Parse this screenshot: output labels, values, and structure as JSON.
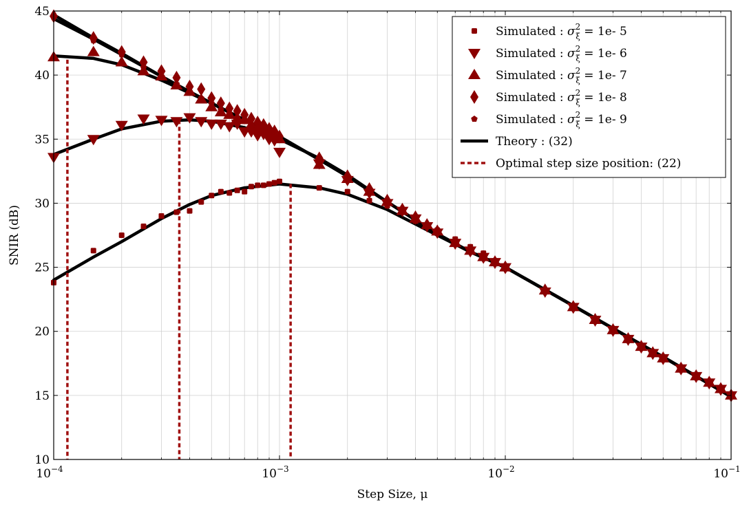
{
  "colors": {
    "marker": "#8b0000",
    "theory": "#000000",
    "optimal": "#a01010",
    "grid": "#d0d0d0"
  },
  "chart_data": {
    "type": "line",
    "xlabel": "Step Size, μ",
    "ylabel": "SNIR (dB)",
    "xscale": "log",
    "xlim": [
      0.0001,
      0.1
    ],
    "ylim": [
      10,
      45
    ],
    "grid": true,
    "legend_position": "top-right",
    "x_ticks": [
      {
        "base": "10",
        "exp": "−4"
      },
      {
        "base": "10",
        "exp": "−3"
      },
      {
        "base": "10",
        "exp": "−2"
      },
      {
        "base": "10",
        "exp": "−1"
      }
    ],
    "y_ticks": [
      "10",
      "15",
      "20",
      "25",
      "30",
      "35",
      "40",
      "45"
    ],
    "legend": [
      {
        "marker": "square",
        "prefix": "Simulated : ",
        "sigma": "σ",
        "sub": "ξ",
        "sup": "2",
        "suffix": " = 1e- 5"
      },
      {
        "marker": "triangle-down",
        "prefix": "Simulated : ",
        "sigma": "σ",
        "sub": "ξ",
        "sup": "2",
        "suffix": " = 1e- 6"
      },
      {
        "marker": "triangle-up",
        "prefix": "Simulated : ",
        "sigma": "σ",
        "sub": "ξ",
        "sup": "2",
        "suffix": " = 1e- 7"
      },
      {
        "marker": "diamond",
        "prefix": "Simulated : ",
        "sigma": "σ",
        "sub": "ξ",
        "sup": "2",
        "suffix": " = 1e- 8"
      },
      {
        "marker": "pentagon",
        "prefix": "Simulated : ",
        "sigma": "σ",
        "sub": "ξ",
        "sup": "2",
        "suffix": " = 1e- 9"
      },
      {
        "marker": "line-solid",
        "text": "Theory : (32)"
      },
      {
        "marker": "line-dashed",
        "text": "Optimal step size position: (22)"
      }
    ],
    "theory_curves": [
      {
        "x": [
          0.0001,
          0.00015,
          0.0002,
          0.0003,
          0.0004,
          0.0005,
          0.0007,
          0.001,
          0.0015,
          0.002,
          0.003,
          0.005,
          0.007,
          0.01,
          0.02,
          0.05,
          0.1
        ],
        "y": [
          24.0,
          25.8,
          27.0,
          28.8,
          29.9,
          30.6,
          31.2,
          31.5,
          31.2,
          30.7,
          29.5,
          27.5,
          26.2,
          25.0,
          22.0,
          18.0,
          14.9
        ]
      },
      {
        "x": [
          0.0001,
          0.00015,
          0.0002,
          0.0003,
          0.0004,
          0.0005,
          0.0007,
          0.001,
          0.0015,
          0.002,
          0.003,
          0.005,
          0.007,
          0.01,
          0.02,
          0.05,
          0.1
        ],
        "y": [
          33.8,
          35.0,
          35.8,
          36.4,
          36.5,
          36.4,
          35.9,
          35.0,
          33.5,
          32.2,
          30.1,
          27.6,
          26.2,
          25.0,
          22.0,
          18.0,
          14.9
        ]
      },
      {
        "x": [
          0.0001,
          0.00015,
          0.0002,
          0.0003,
          0.0004,
          0.0005,
          0.0007,
          0.001,
          0.0015,
          0.002,
          0.003,
          0.005,
          0.007,
          0.01,
          0.02,
          0.05,
          0.1
        ],
        "y": [
          41.5,
          41.3,
          40.8,
          39.6,
          38.6,
          37.8,
          36.5,
          35.2,
          33.4,
          32.1,
          30.1,
          27.6,
          26.2,
          25.0,
          22.0,
          18.0,
          14.9
        ]
      },
      {
        "x": [
          0.0001,
          0.00015,
          0.0002,
          0.0003,
          0.0004,
          0.0005,
          0.0007,
          0.001,
          0.0015,
          0.002,
          0.003,
          0.005,
          0.007,
          0.01,
          0.02,
          0.05,
          0.1
        ],
        "y": [
          44.4,
          42.8,
          41.6,
          39.9,
          38.7,
          37.8,
          36.5,
          35.2,
          33.4,
          32.1,
          30.1,
          27.6,
          26.2,
          25.0,
          22.0,
          18.0,
          14.9
        ]
      },
      {
        "x": [
          0.0001,
          0.00015,
          0.0002,
          0.0003,
          0.0004,
          0.0005,
          0.0007,
          0.001,
          0.0015,
          0.002,
          0.003,
          0.005,
          0.007,
          0.01,
          0.02,
          0.05,
          0.1
        ],
        "y": [
          44.7,
          42.9,
          41.7,
          39.9,
          38.7,
          37.8,
          36.5,
          35.2,
          33.4,
          32.1,
          30.1,
          27.6,
          26.2,
          25.0,
          22.0,
          18.0,
          14.9
        ]
      }
    ],
    "series": [
      {
        "marker": "square",
        "x": [
          0.0001,
          0.00015,
          0.0002,
          0.00025,
          0.0003,
          0.00035,
          0.0004,
          0.00045,
          0.0005,
          0.00055,
          0.0006,
          0.00065,
          0.0007,
          0.00075,
          0.0008,
          0.00085,
          0.0009,
          0.00095,
          0.001,
          0.0015,
          0.002,
          0.0025,
          0.003,
          0.0035,
          0.004,
          0.0045,
          0.005,
          0.006,
          0.007,
          0.008,
          0.009,
          0.01,
          0.015,
          0.02,
          0.025,
          0.03,
          0.035,
          0.04,
          0.045,
          0.05,
          0.06,
          0.07,
          0.08,
          0.09,
          0.1
        ],
        "y": [
          23.8,
          26.3,
          27.5,
          28.2,
          29.0,
          29.3,
          29.4,
          30.1,
          30.6,
          30.9,
          30.8,
          31.0,
          30.9,
          31.3,
          31.4,
          31.4,
          31.5,
          31.6,
          31.7,
          31.2,
          30.9,
          30.2,
          29.8,
          29.3,
          28.6,
          28.3,
          27.9,
          27.2,
          26.6,
          26.1,
          25.5,
          25.0,
          23.2,
          22.0,
          21.0,
          20.2,
          19.5,
          18.9,
          18.4,
          18.0,
          17.2,
          16.6,
          16.0,
          15.5,
          15.0
        ]
      },
      {
        "marker": "triangle-down",
        "x": [
          0.0001,
          0.00015,
          0.0002,
          0.00025,
          0.0003,
          0.00035,
          0.0004,
          0.00045,
          0.0005,
          0.00055,
          0.0006,
          0.00065,
          0.0007,
          0.00075,
          0.0008,
          0.00085,
          0.0009,
          0.00095,
          0.001,
          0.0015,
          0.002,
          0.0025,
          0.003,
          0.0035,
          0.004,
          0.0045,
          0.005,
          0.006,
          0.007,
          0.008,
          0.009,
          0.01,
          0.015,
          0.02,
          0.025,
          0.03,
          0.035,
          0.04,
          0.045,
          0.05,
          0.06,
          0.07,
          0.08,
          0.09,
          0.1
        ],
        "y": [
          33.6,
          35.0,
          36.1,
          36.6,
          36.5,
          36.4,
          36.7,
          36.4,
          36.2,
          36.2,
          36.0,
          36.2,
          35.6,
          35.6,
          35.3,
          35.4,
          35.0,
          34.9,
          34.0,
          33.1,
          31.8,
          30.8,
          30.0,
          29.4,
          28.8,
          28.2,
          27.7,
          26.9,
          26.3,
          25.8,
          25.4,
          25.0,
          23.1,
          21.9,
          20.9,
          20.1,
          19.4,
          18.8,
          18.3,
          17.9,
          17.1,
          16.5,
          16.0,
          15.5,
          15.0
        ]
      },
      {
        "marker": "triangle-up",
        "x": [
          0.0001,
          0.00015,
          0.0002,
          0.00025,
          0.0003,
          0.00035,
          0.0004,
          0.00045,
          0.0005,
          0.00055,
          0.0006,
          0.00065,
          0.0007,
          0.00075,
          0.0008,
          0.00085,
          0.0009,
          0.00095,
          0.001,
          0.0015,
          0.002,
          0.0025,
          0.003,
          0.0035,
          0.004,
          0.0045,
          0.005,
          0.006,
          0.007,
          0.008,
          0.009,
          0.01,
          0.015,
          0.02,
          0.025,
          0.03,
          0.035,
          0.04,
          0.045,
          0.05,
          0.06,
          0.07,
          0.08,
          0.09,
          0.1
        ],
        "y": [
          41.4,
          41.8,
          41.0,
          40.3,
          39.9,
          39.2,
          38.7,
          38.1,
          37.5,
          37.1,
          36.9,
          36.6,
          36.5,
          36.1,
          35.9,
          35.6,
          35.4,
          35.2,
          35.0,
          33.0,
          31.9,
          30.9,
          30.1,
          29.4,
          28.8,
          28.3,
          27.8,
          26.9,
          26.3,
          25.8,
          25.4,
          25.0,
          23.2,
          21.9,
          20.9,
          20.1,
          19.4,
          18.8,
          18.3,
          17.9,
          17.1,
          16.5,
          16.0,
          15.5,
          15.0
        ]
      },
      {
        "marker": "diamond",
        "x": [
          0.0001,
          0.00015,
          0.0002,
          0.00025,
          0.0003,
          0.00035,
          0.0004,
          0.00045,
          0.0005,
          0.00055,
          0.0006,
          0.00065,
          0.0007,
          0.00075,
          0.0008,
          0.00085,
          0.0009,
          0.00095,
          0.001,
          0.0015,
          0.002,
          0.0025,
          0.003,
          0.0035,
          0.004,
          0.0045,
          0.005,
          0.006,
          0.007,
          0.008,
          0.009,
          0.01,
          0.015,
          0.02,
          0.025,
          0.03,
          0.035,
          0.04,
          0.045,
          0.05,
          0.06,
          0.07,
          0.08,
          0.09,
          0.1
        ],
        "y": [
          44.6,
          42.9,
          41.8,
          41.0,
          40.3,
          39.8,
          39.1,
          38.9,
          38.2,
          37.8,
          37.4,
          37.2,
          36.9,
          36.6,
          36.3,
          36.1,
          35.8,
          35.6,
          35.2,
          33.5,
          32.1,
          31.1,
          30.2,
          29.5,
          28.9,
          28.3,
          27.8,
          26.9,
          26.3,
          25.8,
          25.4,
          25.0,
          23.2,
          21.9,
          20.9,
          20.1,
          19.4,
          18.8,
          18.3,
          17.9,
          17.1,
          16.5,
          16.0,
          15.5,
          15.0
        ]
      },
      {
        "marker": "pentagon",
        "x": [
          0.0001,
          0.00015,
          0.0002,
          0.00025,
          0.0003,
          0.00035,
          0.0004,
          0.00045,
          0.0005,
          0.00055,
          0.0006,
          0.00065,
          0.0007,
          0.00075,
          0.0008,
          0.00085,
          0.0009,
          0.00095,
          0.001,
          0.0015,
          0.002,
          0.0025,
          0.003,
          0.0035,
          0.004,
          0.0045,
          0.005,
          0.006,
          0.007,
          0.008,
          0.009,
          0.01,
          0.015,
          0.02,
          0.025,
          0.03,
          0.035,
          0.04,
          0.045,
          0.05,
          0.06,
          0.07,
          0.08,
          0.09,
          0.1
        ],
        "y": [
          44.5,
          42.7,
          41.6,
          40.6,
          39.9,
          39.3,
          38.7,
          38.2,
          37.8,
          37.3,
          37.0,
          36.7,
          36.4,
          36.1,
          35.9,
          35.7,
          35.4,
          35.2,
          35.0,
          33.3,
          32.0,
          31.0,
          30.1,
          29.4,
          28.8,
          28.3,
          27.8,
          26.9,
          26.3,
          25.8,
          25.4,
          25.0,
          23.2,
          21.9,
          20.9,
          20.1,
          19.4,
          18.8,
          18.3,
          17.9,
          17.1,
          16.5,
          16.0,
          15.5,
          15.0
        ]
      }
    ],
    "optimal_lines": [
      {
        "x": 0.000115,
        "y": 41.2
      },
      {
        "x": 0.00036,
        "y": 36.5
      },
      {
        "x": 0.00112,
        "y": 31.5
      }
    ]
  }
}
